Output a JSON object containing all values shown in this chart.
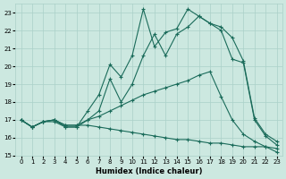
{
  "xlabel": "Humidex (Indice chaleur)",
  "background_color": "#cce8e0",
  "grid_color": "#aad0c8",
  "line_color": "#1a6b5a",
  "xlim": [
    -0.5,
    23.5
  ],
  "ylim": [
    15,
    23.5
  ],
  "yticks": [
    15,
    16,
    17,
    18,
    19,
    20,
    21,
    22,
    23
  ],
  "xticks": [
    0,
    1,
    2,
    3,
    4,
    5,
    6,
    7,
    8,
    9,
    10,
    11,
    12,
    13,
    14,
    15,
    16,
    17,
    18,
    19,
    20,
    21,
    22,
    23
  ],
  "series": [
    [
      17.0,
      16.6,
      16.9,
      16.9,
      16.6,
      16.6,
      17.5,
      18.4,
      20.1,
      19.4,
      20.6,
      23.2,
      21.1,
      21.9,
      22.1,
      23.2,
      22.8,
      22.4,
      22.2,
      21.6,
      20.3,
      17.1,
      16.2,
      15.8
    ],
    [
      17.0,
      16.6,
      16.9,
      17.0,
      16.6,
      16.6,
      17.0,
      17.5,
      19.3,
      18.0,
      19.0,
      20.6,
      21.8,
      20.6,
      21.8,
      22.2,
      22.8,
      22.4,
      22.0,
      20.4,
      20.2,
      17.0,
      16.1,
      15.6
    ],
    [
      17.0,
      16.6,
      16.9,
      17.0,
      16.7,
      16.7,
      17.0,
      17.2,
      17.5,
      17.8,
      18.1,
      18.4,
      18.6,
      18.8,
      19.0,
      19.2,
      19.5,
      19.7,
      18.3,
      17.0,
      16.2,
      15.8,
      15.5,
      15.2
    ],
    [
      17.0,
      16.6,
      16.9,
      17.0,
      16.7,
      16.7,
      16.7,
      16.6,
      16.5,
      16.4,
      16.3,
      16.2,
      16.1,
      16.0,
      15.9,
      15.9,
      15.8,
      15.7,
      15.7,
      15.6,
      15.5,
      15.5,
      15.5,
      15.4
    ]
  ]
}
